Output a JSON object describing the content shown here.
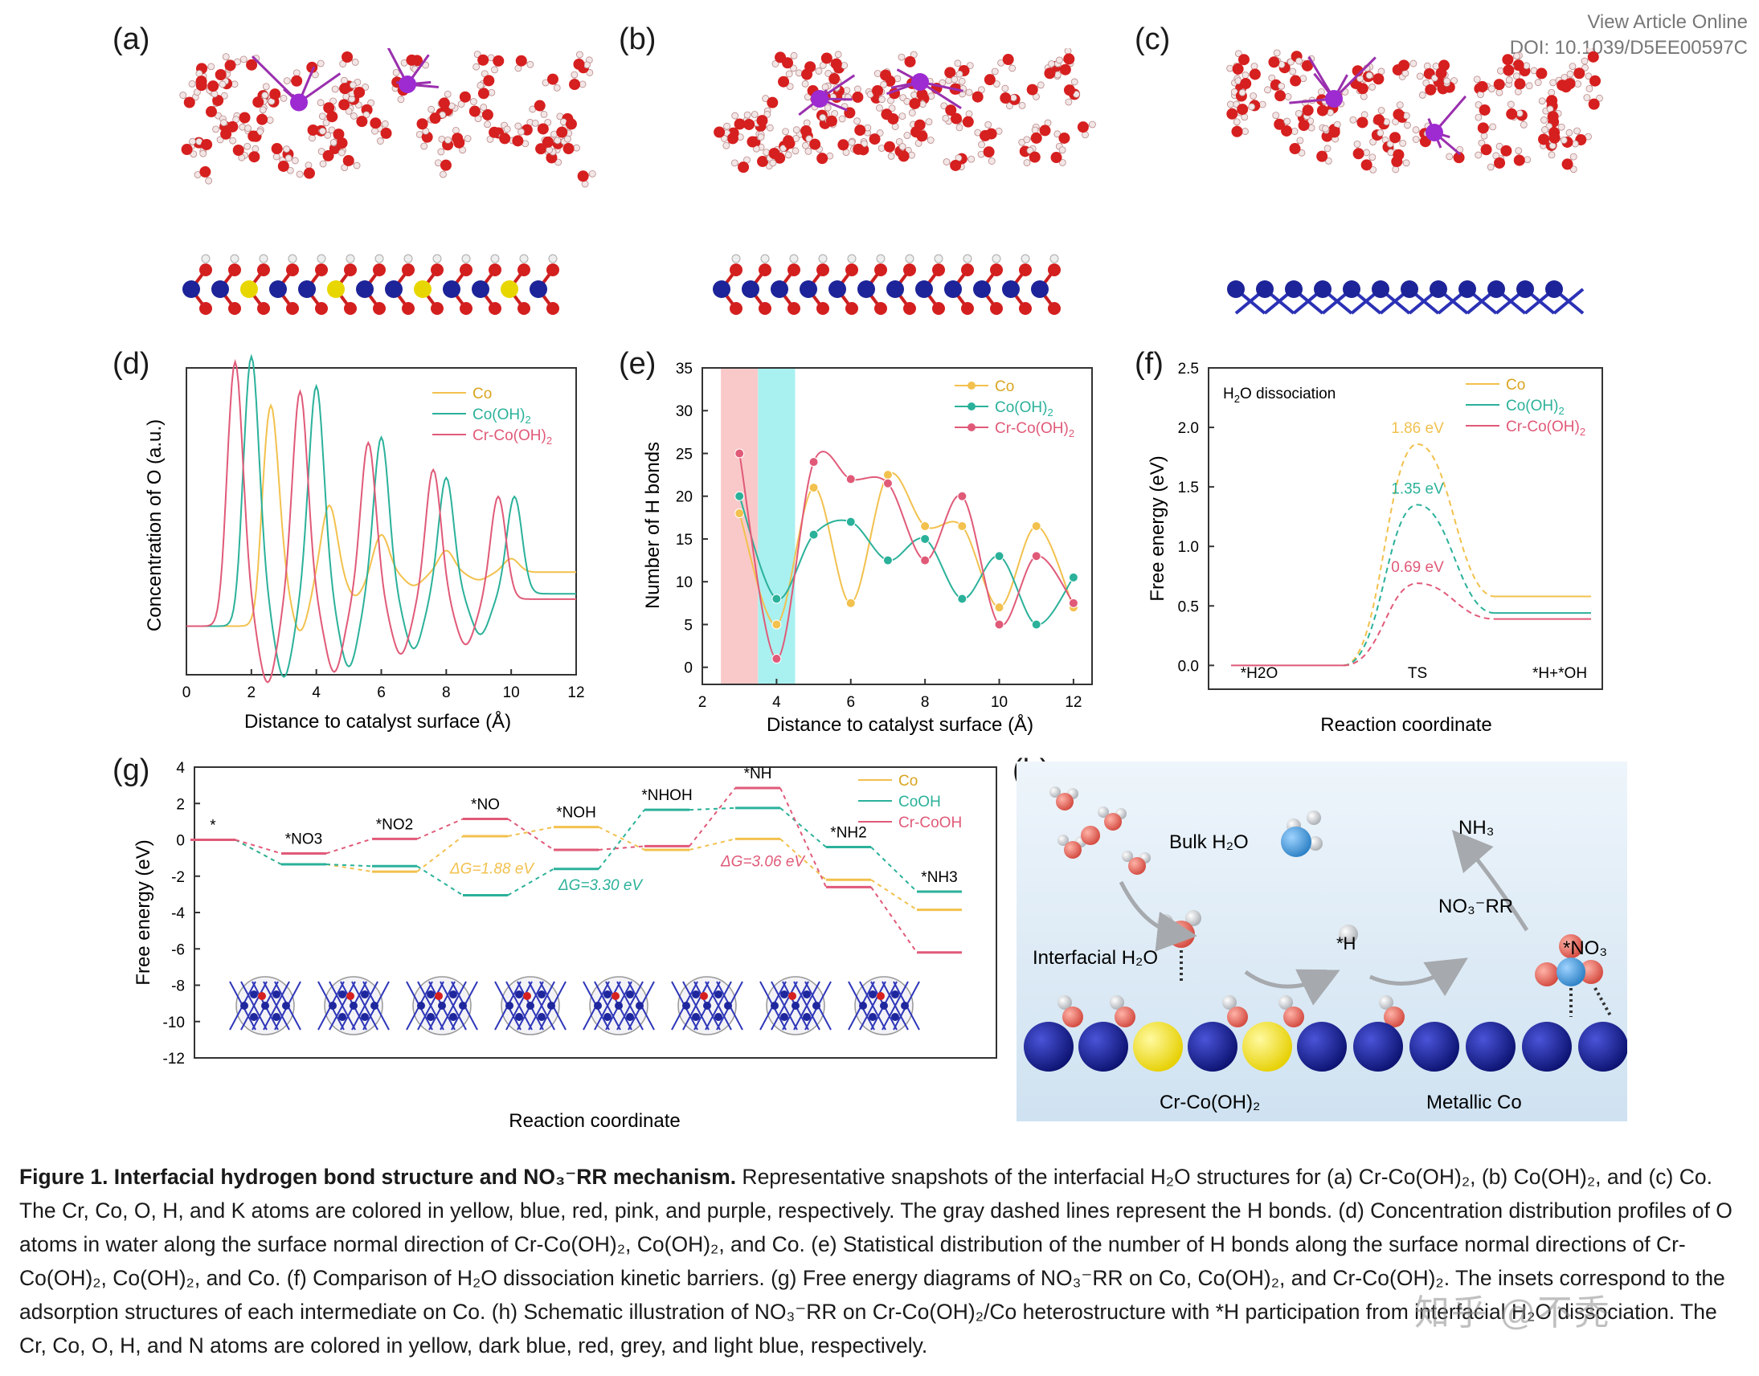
{
  "header": {
    "view_online": "View Article Online",
    "doi": "DOI: 10.1039/D5EE00597C"
  },
  "panels": {
    "a": "(a)",
    "b": "(b)",
    "c": "(c)",
    "d": "(d)",
    "e": "(e)",
    "f": "(f)",
    "g": "(g)",
    "h": "(h)"
  },
  "colors": {
    "co": "#f2c14e",
    "cooh": "#2bb19a",
    "crcooh": "#e05a78"
  },
  "chart_data": [
    {
      "id": "d",
      "type": "line",
      "xlabel": "Distance to catalyst surface (Å)",
      "ylabel": "Concentration of O (a.u.)",
      "xlim": [
        0,
        12
      ],
      "xticks": [
        "0",
        "2",
        "4",
        "6",
        "8",
        "10",
        "12"
      ],
      "legend": [
        "Co",
        "Co(OH)2",
        "Cr-Co(OH)2"
      ],
      "series": [
        {
          "name": "Co",
          "peaks_x": [
            2.6,
            4.4,
            6.0,
            8.0,
            10.0
          ],
          "baseline_y": 0.38,
          "peak_heights": [
            0.62,
            0.25,
            0.14,
            0.08,
            0.05
          ]
        },
        {
          "name": "Co(OH)2",
          "peaks_x": [
            2.0,
            4.0,
            6.0,
            8.0,
            10.1
          ],
          "baseline_y": 0.3,
          "peak_heights": [
            0.88,
            0.77,
            0.58,
            0.43,
            0.36
          ]
        },
        {
          "name": "Cr-Co(OH)2",
          "peaks_x": [
            1.5,
            3.5,
            5.6,
            7.6,
            9.6
          ],
          "baseline_y": 0.28,
          "peak_heights": [
            0.88,
            0.77,
            0.58,
            0.48,
            0.38
          ]
        }
      ]
    },
    {
      "id": "e",
      "type": "line",
      "xlabel": "Distance to catalyst surface (Å)",
      "ylabel": "Number of H bonds",
      "xlim": [
        2,
        12.5
      ],
      "ylim": [
        -2,
        35
      ],
      "xticks": [
        "2",
        "4",
        "6",
        "8",
        "10",
        "12"
      ],
      "yticks": [
        "0",
        "5",
        "10",
        "15",
        "20",
        "25",
        "30",
        "35"
      ],
      "legend": [
        "Co",
        "Co(OH)2",
        "Cr-Co(OH)2"
      ],
      "shaded_regions": [
        {
          "x": [
            2.5,
            3.5
          ],
          "color": "pink"
        },
        {
          "x": [
            3.5,
            4.5
          ],
          "color": "cyan"
        }
      ],
      "x": [
        3,
        4,
        5,
        6,
        7,
        8,
        9,
        10,
        11,
        12
      ],
      "series": [
        {
          "name": "Co",
          "values": [
            18,
            5,
            21,
            7.5,
            22.5,
            16.5,
            16.5,
            7,
            16.5,
            7
          ]
        },
        {
          "name": "Co(OH)2",
          "values": [
            20,
            8,
            15.5,
            17,
            12.5,
            15,
            8,
            13,
            5,
            10.5
          ]
        },
        {
          "name": "Cr-Co(OH)2",
          "values": [
            25,
            1,
            24,
            22,
            21.5,
            12.5,
            20,
            5,
            13,
            7.5
          ]
        }
      ]
    },
    {
      "id": "f",
      "type": "line",
      "title": "H2O dissociation",
      "xlabel": "Reaction coordinate",
      "ylabel": "Free energy (eV)",
      "ylim": [
        -0.2,
        2.5
      ],
      "yticks": [
        "0.0",
        "0.5",
        "1.0",
        "1.5",
        "2.0",
        "2.5"
      ],
      "xcats": [
        "*H2O",
        "TS",
        "*H+*OH"
      ],
      "legend": [
        "Co",
        "Co(OH)2",
        "Cr-Co(OH)2"
      ],
      "series": [
        {
          "name": "Co",
          "values": [
            0,
            1.86,
            0.58
          ],
          "label": "1.86 eV"
        },
        {
          "name": "Co(OH)2",
          "values": [
            0,
            1.35,
            0.44
          ],
          "label": "1.35 eV"
        },
        {
          "name": "Cr-Co(OH)2",
          "values": [
            0,
            0.69,
            0.39
          ],
          "label": "0.69 eV"
        }
      ]
    },
    {
      "id": "g",
      "type": "line",
      "xlabel": "Reaction coordinate",
      "ylabel": "Free energy (eV)",
      "ylim": [
        -12,
        4
      ],
      "yticks": [
        "4",
        "2",
        "0",
        "-2",
        "-4",
        "-6",
        "-8",
        "-10",
        "-12"
      ],
      "states": [
        "*",
        "*NO3",
        "*NO2",
        "*NO",
        "*NOH",
        "*NHOH",
        "*NH",
        "*NH2",
        "*NH3"
      ],
      "legend": [
        "Co",
        "CoOH",
        "Cr-CoOH"
      ],
      "series": [
        {
          "name": "Co",
          "values": [
            0,
            -1.35,
            -1.75,
            0.2,
            0.7,
            -0.55,
            0.05,
            -2.2,
            -3.85
          ]
        },
        {
          "name": "CoOH",
          "values": [
            0,
            -1.35,
            -1.45,
            -3.05,
            -1.6,
            1.65,
            1.75,
            -0.4,
            -2.85
          ]
        },
        {
          "name": "Cr-CoOH",
          "values": [
            0,
            -0.75,
            0.05,
            1.15,
            -0.55,
            -0.35,
            2.85,
            -2.6,
            -6.2
          ]
        }
      ],
      "annotations": [
        "ΔG=1.88 eV",
        "ΔG=3.30 eV",
        "ΔG=3.06 eV"
      ]
    }
  ],
  "panel_h": {
    "bulk": "Bulk H₂O",
    "nh3": "NH₃",
    "nrr": "NO₃⁻RR",
    "interfacial": "Interfacial H₂O",
    "h": "*H",
    "no3": "*NO₃",
    "cr": "Cr-Co(OH)₂",
    "metal": "Metallic Co"
  },
  "caption": {
    "title": "Figure 1. Interfacial hydrogen bond structure and NO₃⁻RR mechanism.",
    "body": " Representative snapshots of the interfacial H₂O structures for (a) Cr-Co(OH)₂, (b) Co(OH)₂, and (c) Co. The Cr, Co, O, H, and K atoms are colored in yellow, blue, red, pink, and purple, respectively. The gray dashed lines represent the H bonds. (d) Concentration distribution profiles of O atoms in water along the surface normal direction of Cr-Co(OH)₂, Co(OH)₂, and Co. (e) Statistical distribution of the number of H bonds along the surface normal directions of Cr-Co(OH)₂, Co(OH)₂, and Co. (f) Comparison of H₂O dissociation kinetic barriers. (g) Free energy diagrams of NO₃⁻RR on Co, Co(OH)₂, and Cr-Co(OH)₂. The insets correspond to the adsorption structures of each intermediate on Co. (h) Schematic illustration of NO₃⁻RR on Cr-Co(OH)₂/Co heterostructure with *H participation from interfacial H₂O dissociation. The Cr, Co, O, H, and N atoms are colored in yellow, dark blue, red, grey, and light blue, respectively."
  },
  "watermark": "知乎 @不秃"
}
